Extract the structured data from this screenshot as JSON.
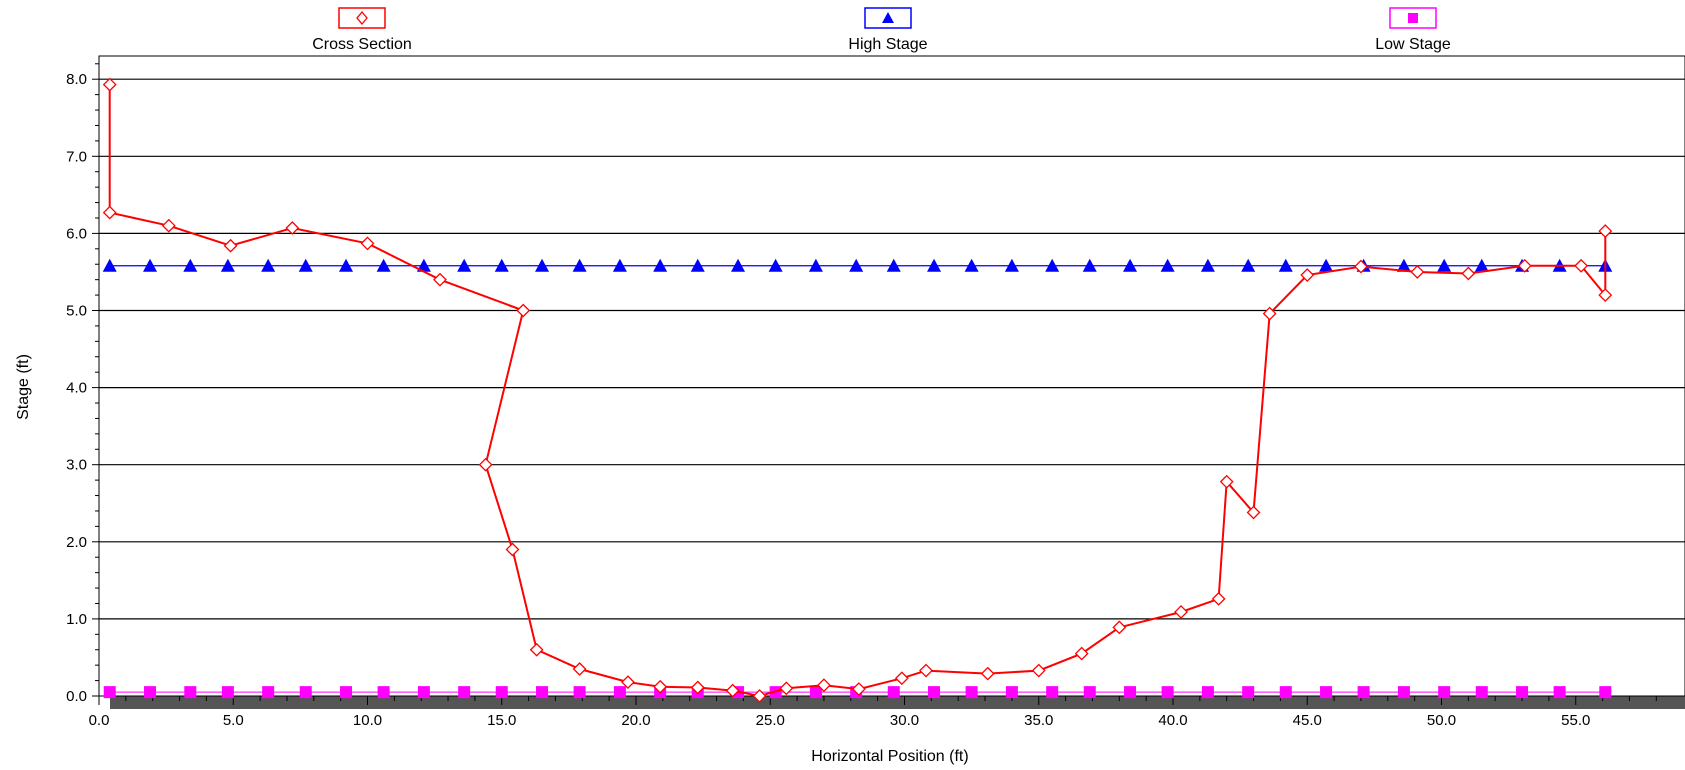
{
  "chart_data": {
    "type": "line",
    "title": "",
    "xlabel": "Horizontal Position (ft)",
    "ylabel": "Stage (ft)",
    "xlim": [
      0,
      59
    ],
    "ylim": [
      0,
      8.2
    ],
    "xticks": [
      0,
      5,
      10,
      15,
      20,
      25,
      30,
      35,
      40,
      45,
      50,
      55
    ],
    "xtick_labels": [
      "0.0",
      "5.0",
      "10.0",
      "15.0",
      "20.0",
      "25.0",
      "30.0",
      "35.0",
      "40.0",
      "45.0",
      "50.0",
      "55.0"
    ],
    "yticks": [
      0,
      1,
      2,
      3,
      4,
      5,
      6,
      7,
      8
    ],
    "ytick_labels": [
      "0.0",
      "1.0",
      "2.0",
      "3.0",
      "4.0",
      "5.0",
      "6.0",
      "7.0",
      "8.0"
    ],
    "grid": "horizontal",
    "legend_position": "top",
    "series": [
      {
        "name": "Cross Section",
        "color": "#ff0000",
        "marker": "diamond-open",
        "x": [
          0.4,
          0.4,
          2.6,
          4.9,
          7.2,
          10.0,
          12.7,
          15.8,
          14.4,
          15.4,
          16.3,
          17.9,
          19.7,
          20.9,
          22.3,
          23.6,
          24.6,
          25.6,
          27.0,
          28.3,
          29.9,
          30.8,
          33.1,
          35.0,
          36.6,
          38.0,
          40.3,
          41.7,
          42.0,
          43.0,
          43.6,
          45.0,
          47.0,
          49.1,
          51.0,
          53.1,
          55.2,
          56.1,
          56.1
        ],
        "y": [
          7.93,
          6.27,
          6.1,
          5.84,
          6.07,
          5.87,
          5.4,
          5.0,
          3.0,
          1.9,
          0.6,
          0.35,
          0.18,
          0.12,
          0.11,
          0.07,
          0.0,
          0.1,
          0.14,
          0.09,
          0.23,
          0.33,
          0.29,
          0.33,
          0.55,
          0.89,
          1.09,
          1.26,
          2.78,
          2.38,
          4.96,
          5.46,
          5.57,
          5.5,
          5.48,
          5.58,
          5.58,
          5.2,
          6.03
        ]
      },
      {
        "name": "High Stage",
        "color": "#0000ff",
        "marker": "triangle",
        "value": 5.58,
        "x": [
          0.4,
          1.9,
          3.4,
          4.8,
          6.3,
          7.7,
          9.2,
          10.6,
          12.1,
          13.6,
          15.0,
          16.5,
          17.9,
          19.4,
          20.9,
          22.3,
          23.8,
          25.2,
          26.7,
          28.2,
          29.6,
          31.1,
          32.5,
          34.0,
          35.5,
          36.9,
          38.4,
          39.8,
          41.3,
          42.8,
          44.2,
          45.7,
          47.1,
          48.6,
          50.1,
          51.5,
          53.0,
          54.4,
          56.1
        ]
      },
      {
        "name": "Low Stage",
        "color": "#ff00ff",
        "marker": "square",
        "value": 0.05,
        "x": [
          0.4,
          1.9,
          3.4,
          4.8,
          6.3,
          7.7,
          9.2,
          10.6,
          12.1,
          13.6,
          15.0,
          16.5,
          17.9,
          19.4,
          20.9,
          22.3,
          23.8,
          25.2,
          26.7,
          28.2,
          29.6,
          31.1,
          32.5,
          34.0,
          35.5,
          36.9,
          38.4,
          39.8,
          41.3,
          42.8,
          44.2,
          45.7,
          47.1,
          48.6,
          50.1,
          51.5,
          53.0,
          54.4,
          56.1
        ]
      }
    ]
  }
}
